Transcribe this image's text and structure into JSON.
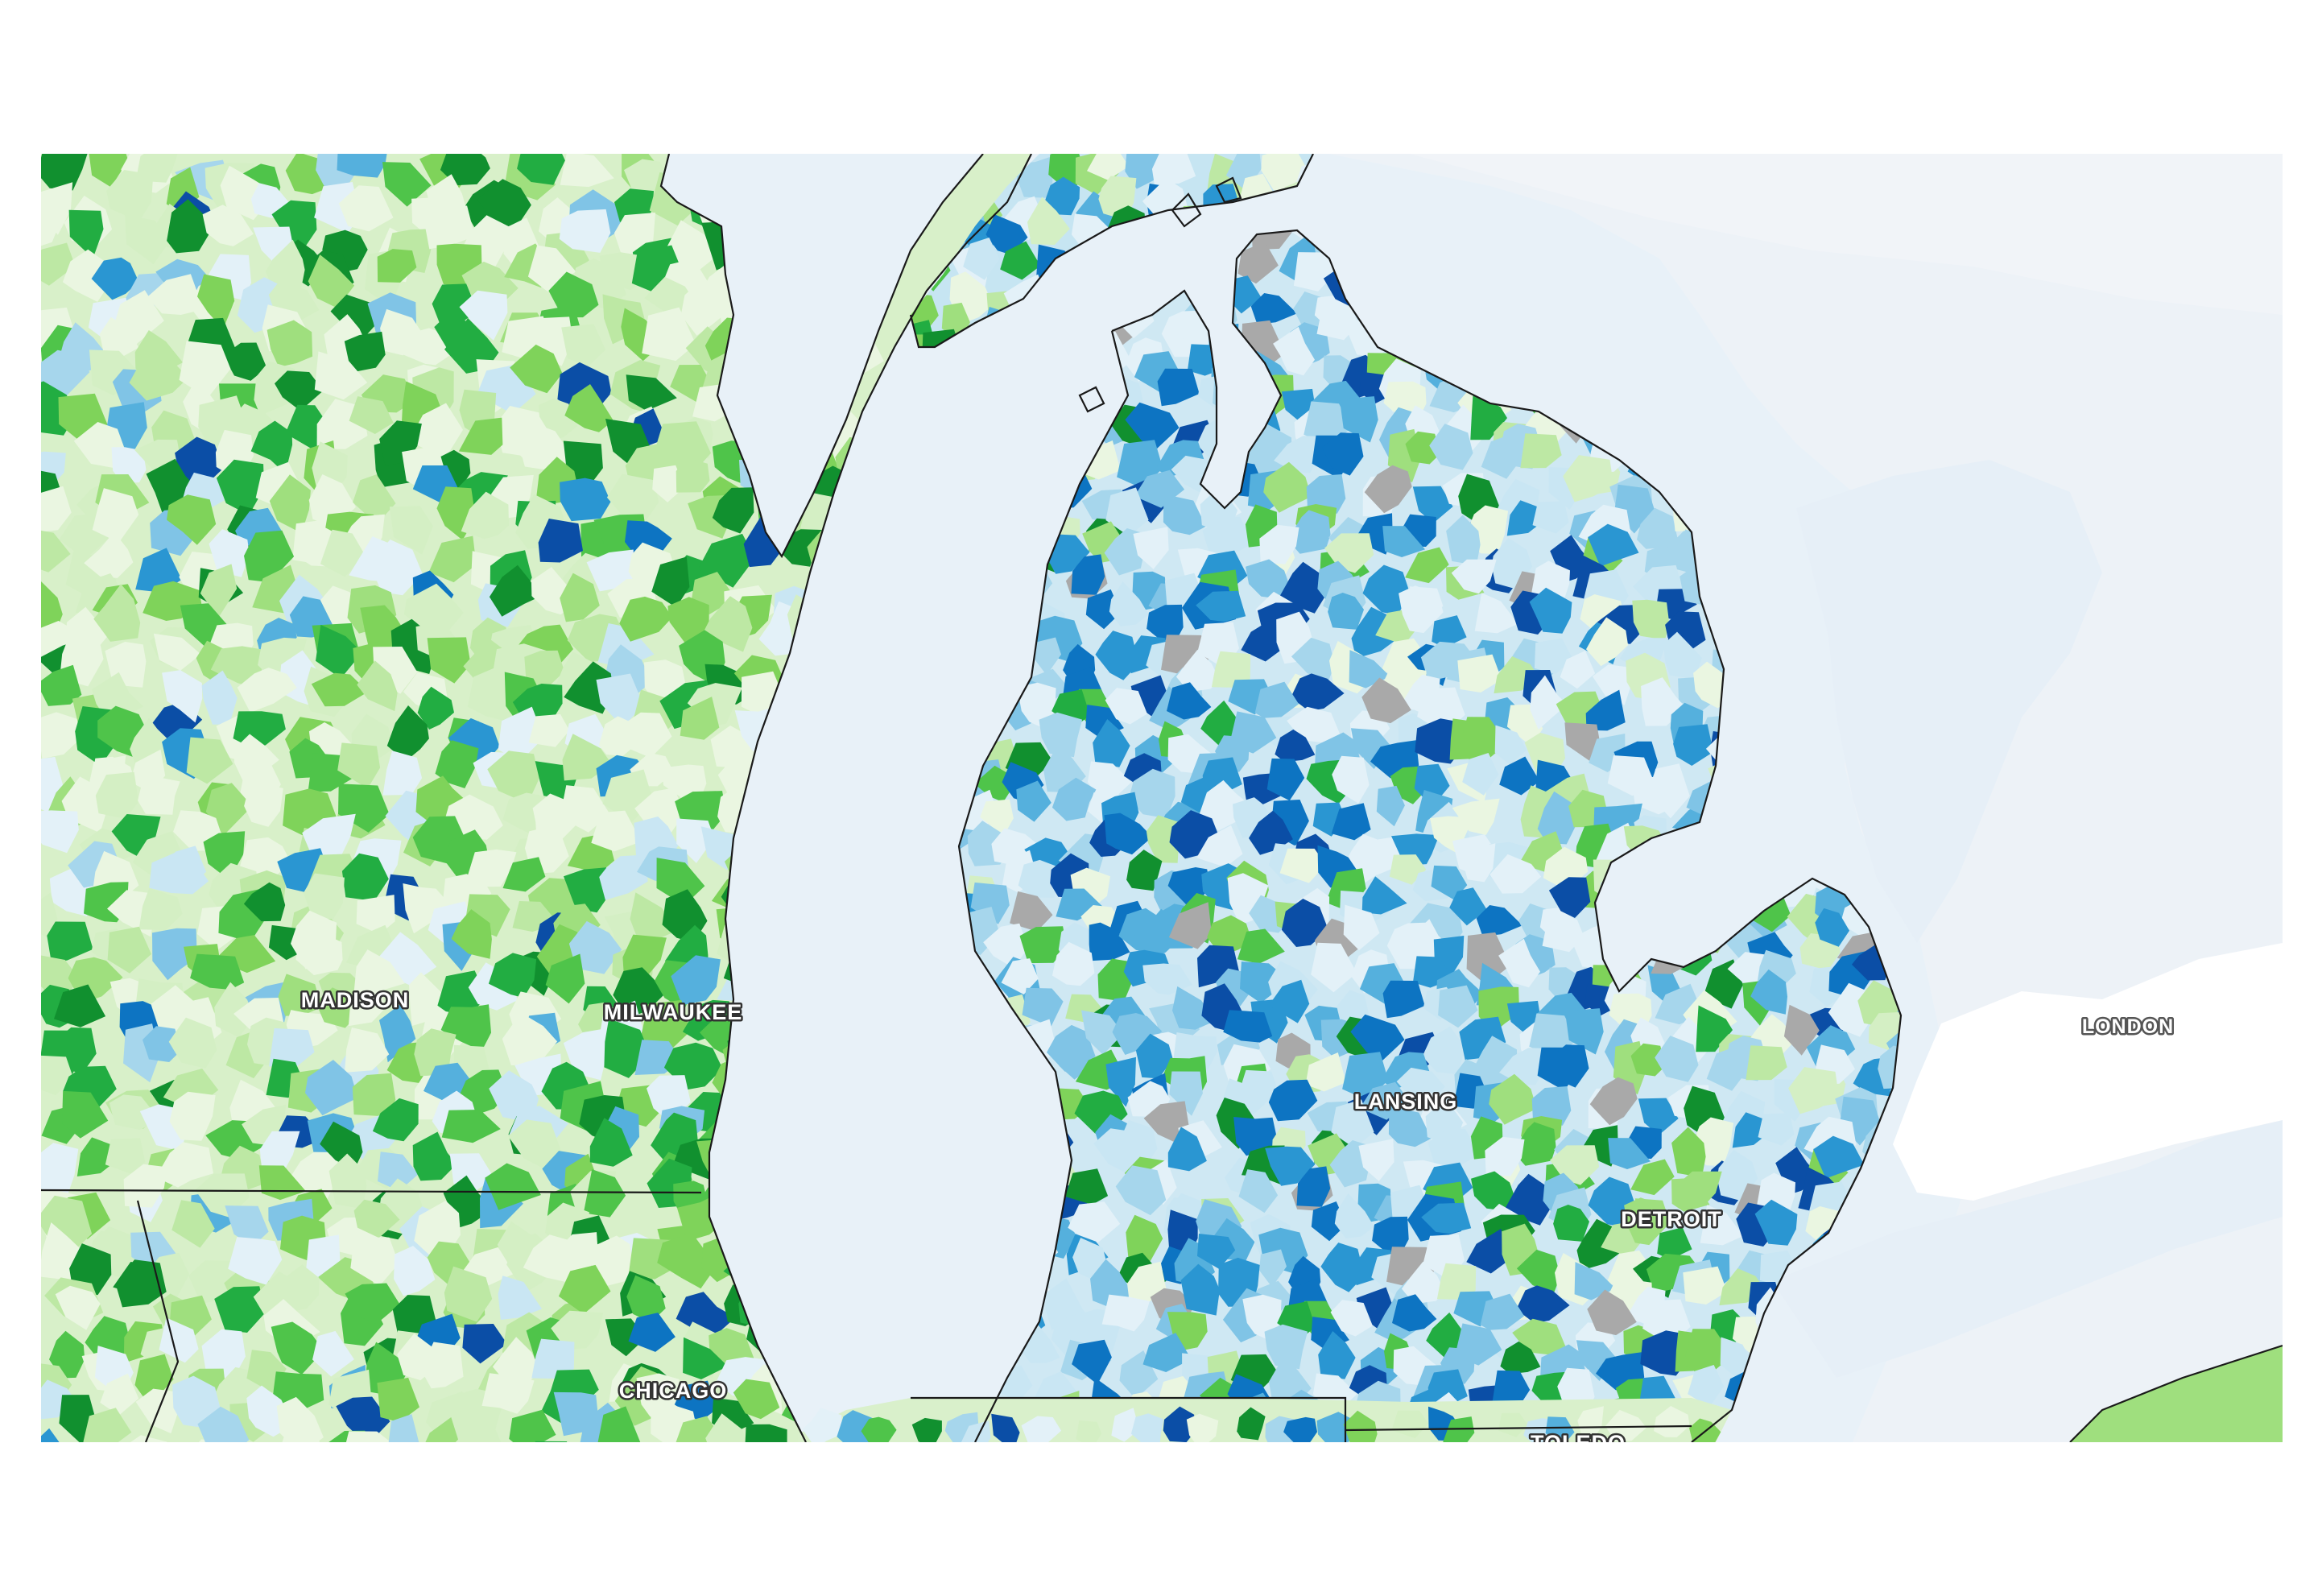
{
  "palette": {
    "water": "#e9f2f9",
    "foreign_land": "#eef2f6",
    "no_data": "#a9a9a9",
    "green_scale": [
      "#eaf6e1",
      "#d4efc4",
      "#bde8a4",
      "#9fdf7e",
      "#7fd35a",
      "#4fc44a",
      "#22ad42",
      "#11902f"
    ],
    "blue_scale": [
      "#e3f1f8",
      "#c9e6f3",
      "#a6d6ec",
      "#80c4e6",
      "#55b0dd",
      "#2a96d2",
      "#0d74c2",
      "#0b4ea6"
    ],
    "border": "#1a1a1a"
  },
  "cities": [
    {
      "name": "MADISON",
      "id": "madison"
    },
    {
      "name": "MILWAUKEE",
      "id": "milwaukee"
    },
    {
      "name": "CHICAGO",
      "id": "chicago"
    },
    {
      "name": "LANSING",
      "id": "lansing"
    },
    {
      "name": "DETROIT",
      "id": "detroit"
    },
    {
      "name": "LONDON",
      "id": "london"
    },
    {
      "name": "TOLEDO",
      "id": "toledo"
    }
  ]
}
